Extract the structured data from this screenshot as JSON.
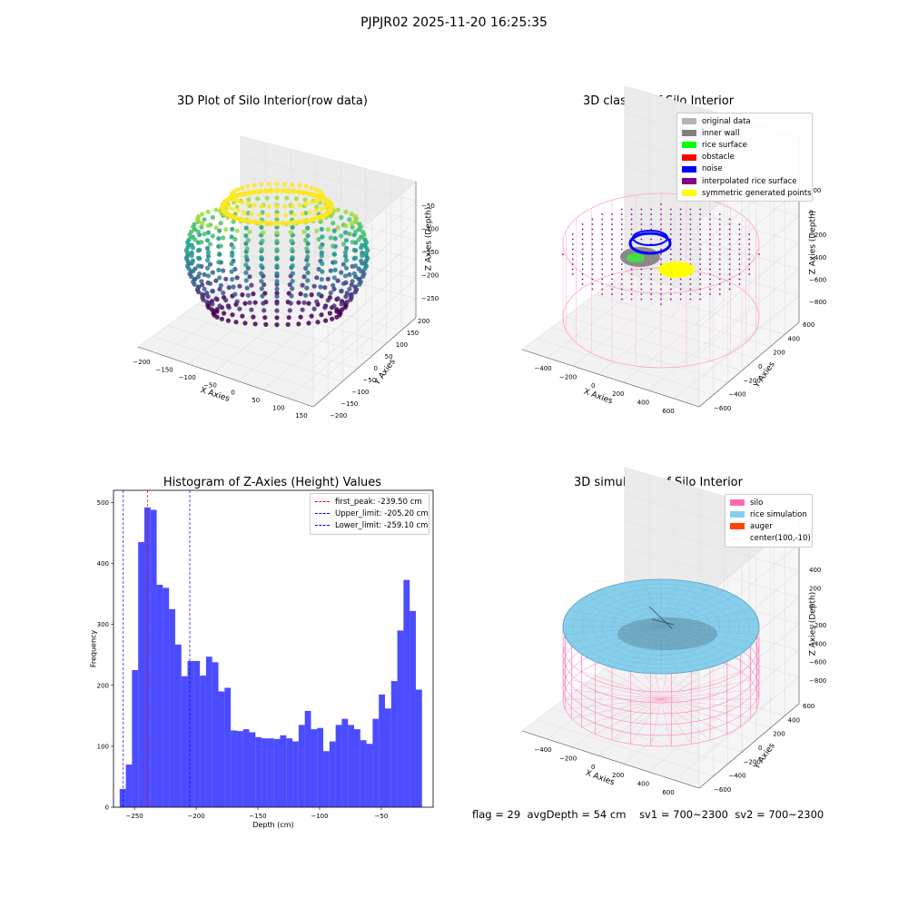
{
  "figure_title": "PJPJR02 2025-11-20 16:25:35",
  "footer": {
    "flag": "flag = 29",
    "avg_depth": "avgDepth = 54 cm",
    "sv1": "sv1 = 700~2300",
    "sv2": "sv2 = 700~2300"
  },
  "chart_data": [
    {
      "type": "scatter",
      "subtype": "3d",
      "title": "3D Plot of Silo Interior(row data)",
      "xlabel": "X Axies",
      "ylabel": "Y Axies",
      "zlabel": "Z Axies (Depth)",
      "x_ticks": [
        "−200",
        "−150",
        "−100",
        "−50",
        "0",
        "50",
        "100",
        "150"
      ],
      "y_ticks": [
        "−200",
        "−150",
        "−100",
        "−50",
        "0",
        "50",
        "100",
        "150",
        "200"
      ],
      "z_ticks": [
        "−250",
        "−200",
        "−150",
        "−100",
        "−50"
      ],
      "xlim": [
        -210,
        160
      ],
      "ylim": [
        -200,
        200
      ],
      "zlim": [
        -270,
        -20
      ],
      "colormap": "viridis",
      "grid": true
    },
    {
      "type": "scatter",
      "subtype": "3d",
      "title": "3D classify of Silo Interior",
      "xlabel": "X Axies",
      "ylabel": "Y Axies",
      "zlabel": "Z Axies (Depth)",
      "x_ticks": [
        "−400",
        "−200",
        "0",
        "200",
        "400",
        "600"
      ],
      "y_ticks": [
        "−600",
        "−400",
        "−200",
        "0",
        "200",
        "400",
        "600"
      ],
      "z_ticks": [
        "−800",
        "−600",
        "−400",
        "−200",
        "0",
        "200"
      ],
      "xlim": [
        -500,
        700
      ],
      "ylim": [
        -650,
        650
      ],
      "zlim": [
        -900,
        300
      ],
      "grid": true,
      "legend_position": "top-right",
      "legend": [
        {
          "label": "original data",
          "color": "#b3b3b3"
        },
        {
          "label": "inner wall",
          "color": "#808080"
        },
        {
          "label": "rice surface",
          "color": "#00ff00"
        },
        {
          "label": "obstacle",
          "color": "#ff0000"
        },
        {
          "label": "noise",
          "color": "#0000ff"
        },
        {
          "label": "interpolated rice surface",
          "color": "#800080"
        },
        {
          "label": "symmetric generated points",
          "color": "#ffff00"
        }
      ]
    },
    {
      "type": "bar",
      "subtype": "histogram",
      "title": "Histogram of Z-Axies (Height) Values",
      "xlabel": "Depth (cm)",
      "ylabel": "Frequency",
      "color": "#0000ff",
      "x_ticks": [
        "−250",
        "−200",
        "−150",
        "−100",
        "−50"
      ],
      "y_ticks": [
        "0",
        "100",
        "200",
        "300",
        "400",
        "500"
      ],
      "xlim": [
        -267,
        -8
      ],
      "ylim": [
        0,
        520
      ],
      "bin_start": -262,
      "bin_width": 5,
      "values": [
        30,
        70,
        225,
        435,
        492,
        488,
        365,
        360,
        325,
        267,
        215,
        240,
        240,
        216,
        247,
        238,
        190,
        196,
        126,
        125,
        128,
        123,
        115,
        113,
        113,
        112,
        118,
        113,
        108,
        135,
        158,
        128,
        130,
        92,
        108,
        135,
        145,
        135,
        128,
        110,
        104,
        145,
        185,
        162,
        207,
        290,
        373,
        322,
        193
      ],
      "vlines": [
        {
          "label": "first_peak: -239.50 cm",
          "x": -239.5,
          "color": "#ff0000"
        },
        {
          "label": "Upper_limit: -205.20 cm",
          "x": -205.2,
          "color": "#0000ff"
        },
        {
          "label": "Lower_limit: -259.10 cm",
          "x": -259.1,
          "color": "#0000ff"
        }
      ],
      "legend_position": "top-right"
    },
    {
      "type": "surface",
      "subtype": "3d",
      "title": "3D simulation of Silo Interior",
      "xlabel": "X Axies",
      "ylabel": "Y Axies",
      "zlabel": "Z Axies (Depth)",
      "x_ticks": [
        "−400",
        "−200",
        "0",
        "200",
        "400",
        "600"
      ],
      "y_ticks": [
        "−600",
        "−400",
        "−200",
        "0",
        "200",
        "400",
        "600"
      ],
      "z_ticks": [
        "−800",
        "−600",
        "−400",
        "−200",
        "0",
        "200",
        "400"
      ],
      "xlim": [
        -500,
        700
      ],
      "ylim": [
        -650,
        650
      ],
      "zlim": [
        -900,
        450
      ],
      "grid": true,
      "legend_position": "top-right",
      "legend": [
        {
          "label": "silo",
          "color": "#ff69b4"
        },
        {
          "label": "rice simulation",
          "color": "#87ceeb"
        },
        {
          "label": "auger",
          "color": "#ff4500"
        },
        {
          "label": "center(100,-10)",
          "color": ""
        }
      ]
    }
  ]
}
